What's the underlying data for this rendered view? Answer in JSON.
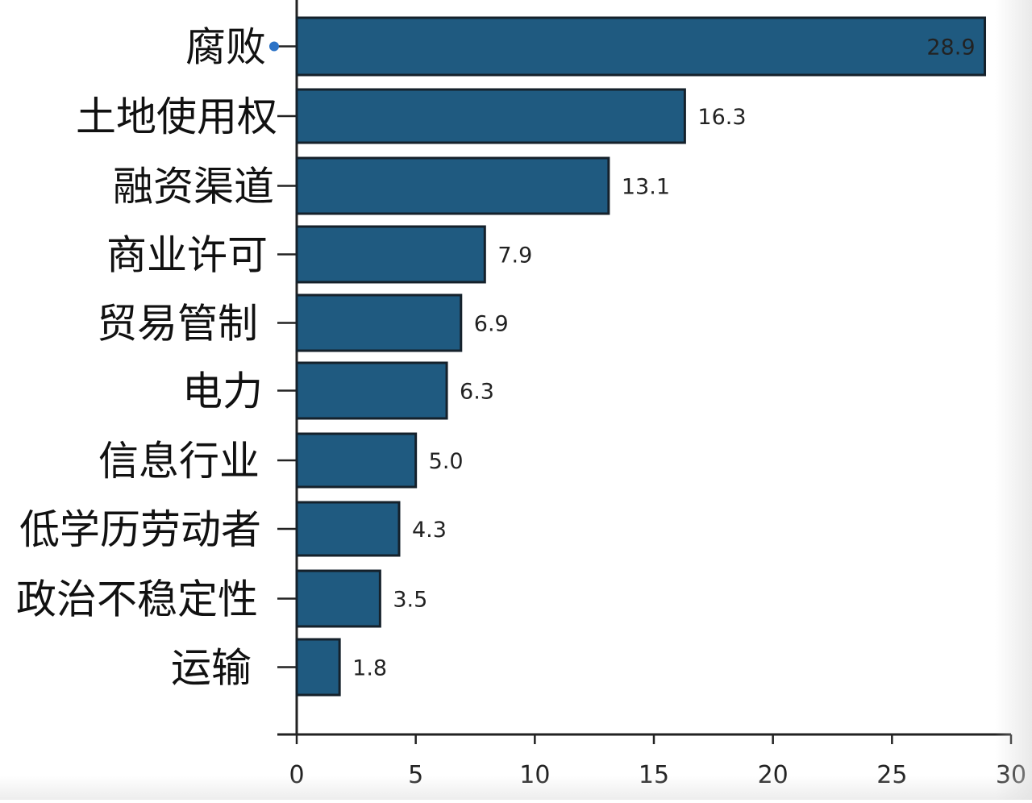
{
  "chart_data": {
    "type": "bar",
    "orientation": "horizontal",
    "categories": [
      "腐败",
      "土地使用权",
      "融资渠道",
      "商业许可",
      "贸易管制",
      "电力",
      "信息行业",
      "低学历劳动者",
      "政治不稳定性",
      "运输"
    ],
    "values": [
      28.9,
      16.3,
      13.1,
      7.9,
      6.9,
      6.3,
      5.0,
      4.3,
      3.5,
      1.8
    ],
    "value_labels": [
      "28.9",
      "16.3",
      "13.1",
      "7.9",
      "6.9",
      "6.3",
      "5.0",
      "4.3",
      "3.5",
      "1.8"
    ],
    "title": "",
    "xlabel": "",
    "ylabel": "",
    "xlim": [
      0,
      30
    ],
    "xticks": [
      0,
      5,
      10,
      15,
      20,
      25,
      30
    ],
    "xtick_labels": [
      "0",
      "5",
      "10",
      "15",
      "20",
      "25",
      "30"
    ],
    "grid": false,
    "legend": "none",
    "colors": {
      "bar_fill": "#1f5a80",
      "bar_stroke": "#15212b",
      "axis": "#222222",
      "marker": "#2b72c6"
    }
  }
}
